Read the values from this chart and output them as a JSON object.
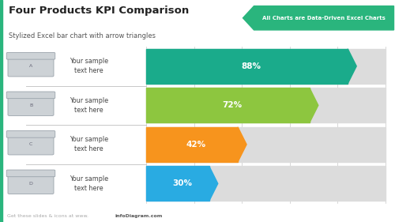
{
  "title": "Four Products KPI Comparison",
  "subtitle": "Stylized Excel bar chart with arrow triangles",
  "banner_text": "All Charts are Data-Driven Excel Charts",
  "footer_text": "Get these slides & icons at www.",
  "footer_bold": "infoDiagram.com",
  "background_color": "#ffffff",
  "banner_color": "#2ab57d",
  "teal_border_color": "#2ab57d",
  "products": [
    "A",
    "B",
    "C",
    "D"
  ],
  "labels": [
    "Your sample\ntext here",
    "Your sample\ntext here",
    "Your sample\ntext here",
    "Your sample\ntext here"
  ],
  "values": [
    88,
    72,
    42,
    30
  ],
  "value_labels": [
    "88%",
    "72%",
    "42%",
    "30%"
  ],
  "bar_colors": [
    "#1aab8b",
    "#8dc63f",
    "#f7941d",
    "#29abe2"
  ],
  "bar_bg_color": "#dcdcdc",
  "grid_color": "#c8c8c8",
  "max_value": 100,
  "icon_face_color": "#cdd2d6",
  "icon_edge_color": "#9aa3ab",
  "label_color": "#444444",
  "separator_color": "#c8c8c8",
  "title_color": "#222222",
  "subtitle_color": "#555555",
  "footer_color": "#aaaaaa",
  "footer_bold_color": "#555555"
}
